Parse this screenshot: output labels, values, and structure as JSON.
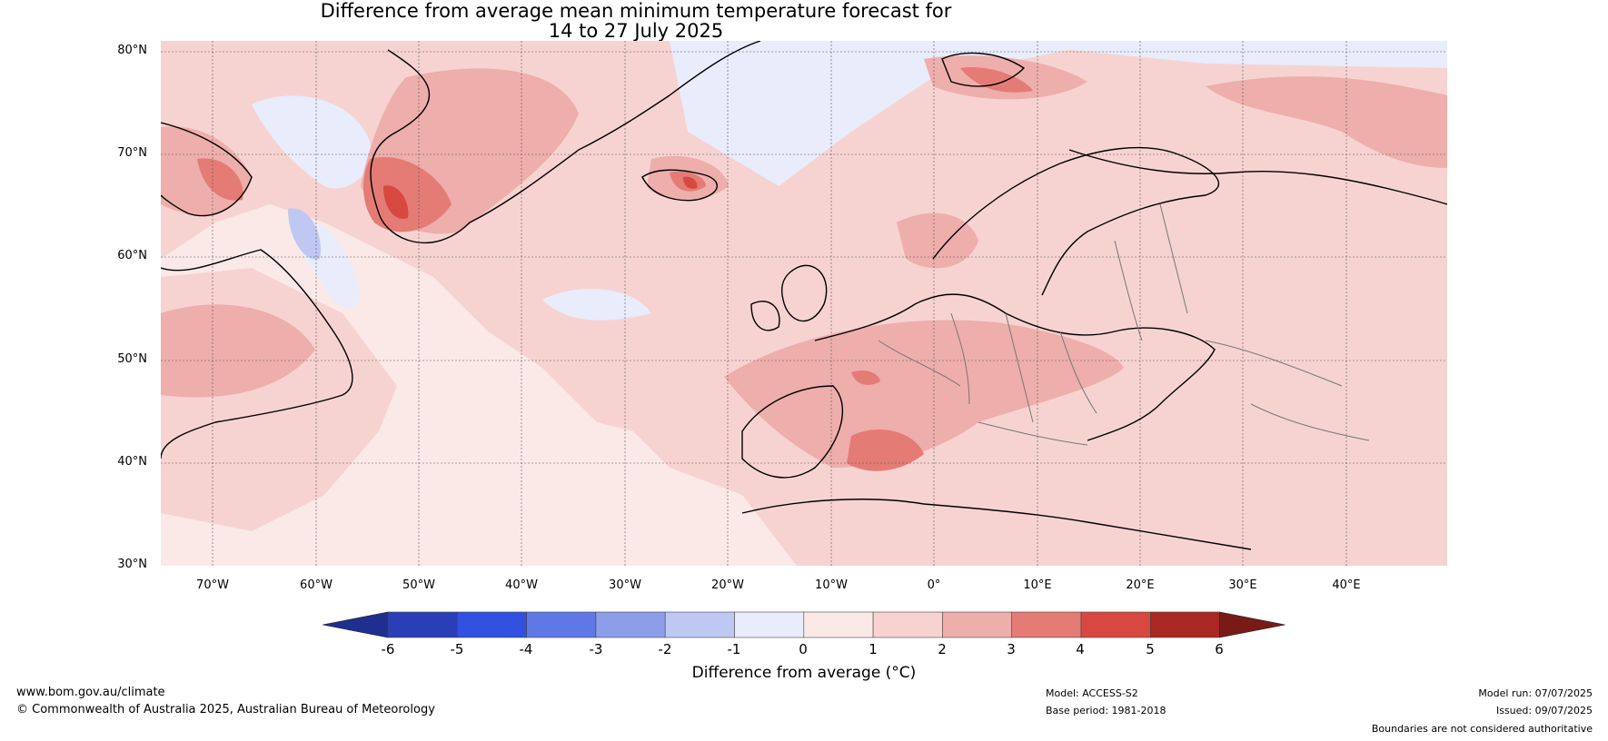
{
  "title_line1": "Difference from average mean minimum temperature forecast for",
  "title_line2": "14 to 27 July 2025",
  "lat_labels": [
    "80°N",
    "70°N",
    "60°N",
    "50°N",
    "40°N",
    "30°N"
  ],
  "lon_labels": [
    "70°W",
    "60°W",
    "50°W",
    "40°W",
    "30°W",
    "20°W",
    "10°W",
    "0°",
    "10°E",
    "20°E",
    "30°E",
    "40°E"
  ],
  "colorbar": {
    "ticks": [
      "-6",
      "-5",
      "-4",
      "-3",
      "-2",
      "-1",
      "0",
      "1",
      "2",
      "3",
      "4",
      "5",
      "6"
    ],
    "colors": [
      "#1e2f8f",
      "#2a3eb8",
      "#3150e0",
      "#5f78e6",
      "#8c9ee9",
      "#bfc8f2",
      "#e8ecfb",
      "#fbe9e7",
      "#f6d3d1",
      "#eeaeab",
      "#e47b75",
      "#d74840",
      "#aa2822",
      "#781a16"
    ],
    "label": "Difference from average (°C)"
  },
  "footer": {
    "website": "www.bom.gov.au/climate",
    "copyright": "© Commonwealth of Australia 2025, Australian Bureau of Meteorology",
    "model": "Model: ACCESS-S2",
    "base_period": "Base period: 1981-2018",
    "model_run": "Model run: 07/07/2025",
    "issued": "Issued: 09/07/2025",
    "disclaimer": "Boundaries are not considered authoritative"
  },
  "map": {
    "ocean_background": "#fbe9e7",
    "coastline_color": "#000000",
    "border_color": "#777777"
  }
}
